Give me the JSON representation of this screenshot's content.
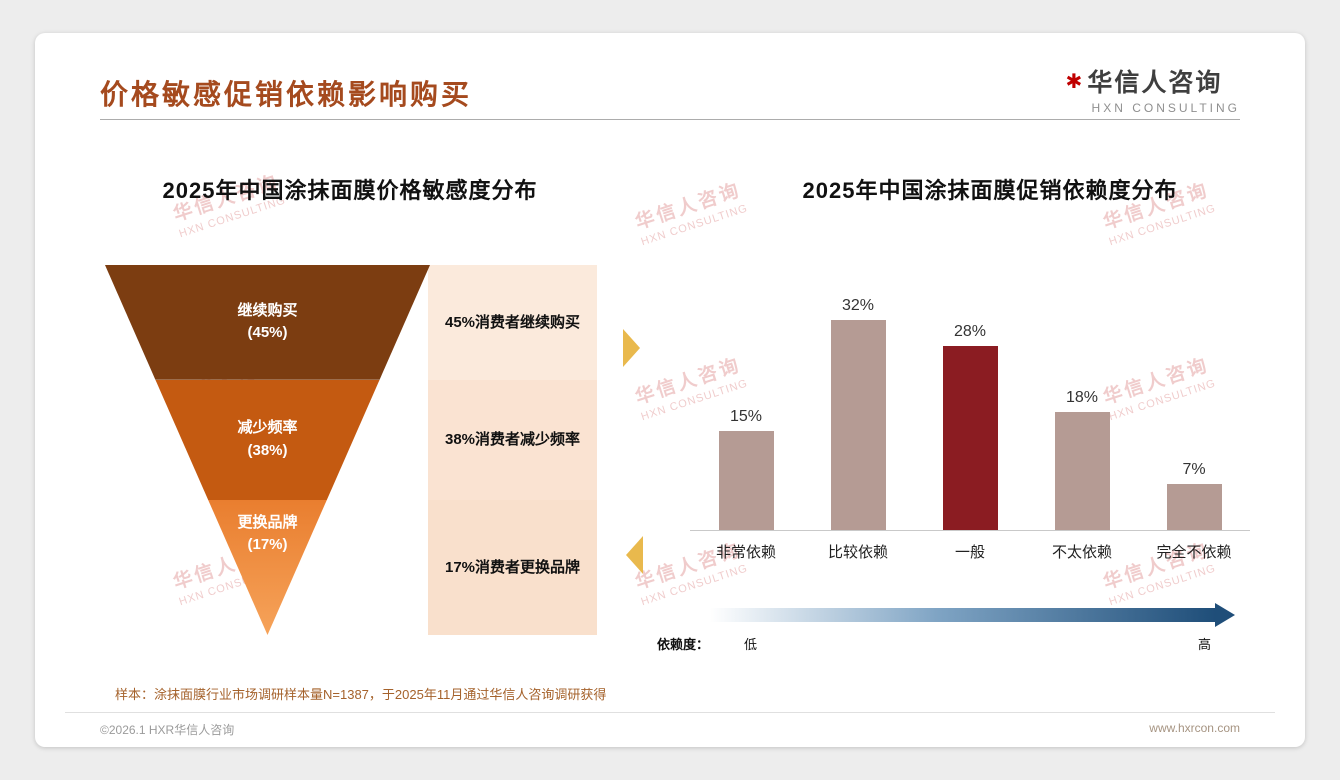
{
  "page": {
    "title": "价格敏感促销依赖影响购买",
    "logo": {
      "star_glyph": "✱",
      "name": "华信人咨询",
      "subtitle": "HXN CONSULTING"
    },
    "watermark": {
      "line1": "华信人咨询",
      "line2": "HXN CONSULTING"
    },
    "flow_arrow_color": "#E9B94D",
    "note": "样本：涂抹面膜行业市场调研样本量N=1387，于2025年11月通过华信人咨询调研获得",
    "footer": {
      "left": "©2026.1 HXR华信人咨询",
      "right": "www.hxrcon.com"
    }
  },
  "chart_data": [
    {
      "type": "funnel",
      "title": "2025年中国涂抹面膜价格敏感度分布",
      "stages": [
        {
          "label": "继续购买",
          "pct_label": "(45%)",
          "value": 45,
          "annotation": "45%消费者继续购买",
          "color": "#7C3D11"
        },
        {
          "label": "减少频率",
          "pct_label": "(38%)",
          "value": 38,
          "annotation": "38%消费者减少频率",
          "color": "#C45A11"
        },
        {
          "label": "更换品牌",
          "pct_label": "(17%)",
          "value": 17,
          "annotation": "17%消费者更换品牌",
          "color": "#E97E2F",
          "color_bottom": "#F6A35A"
        }
      ]
    },
    {
      "type": "bar",
      "title": "2025年中国涂抹面膜促销依赖度分布",
      "categories": [
        "非常依赖",
        "比较依赖",
        "一般",
        "不太依赖",
        "完全不依赖"
      ],
      "values": [
        15,
        32,
        28,
        18,
        7
      ],
      "value_labels": [
        "15%",
        "32%",
        "28%",
        "18%",
        "7%"
      ],
      "ylim": [
        0,
        35
      ],
      "bar_color": "#B59B94",
      "highlight_color": "#8B1C22",
      "highlight_index": 2,
      "gradient": {
        "from": "#FFFFFF",
        "mid": "#7FA4C4",
        "to": "#1F4E79"
      },
      "legend": {
        "label": "依赖度：",
        "low": "低",
        "high": "高"
      }
    }
  ]
}
